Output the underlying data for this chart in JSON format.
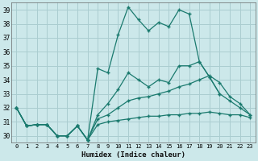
{
  "xlabel": "Humidex (Indice chaleur)",
  "bg_color": "#cce8ea",
  "line_color": "#1a7a6e",
  "grid_color": "#aacdd0",
  "xlim": [
    -0.5,
    23.5
  ],
  "ylim": [
    29.5,
    39.5
  ],
  "xticks": [
    0,
    1,
    2,
    3,
    4,
    5,
    6,
    7,
    8,
    9,
    10,
    11,
    12,
    13,
    14,
    15,
    16,
    17,
    18,
    19,
    20,
    21,
    22,
    23
  ],
  "yticks": [
    30,
    31,
    32,
    33,
    34,
    35,
    36,
    37,
    38,
    39
  ],
  "series": [
    [
      32.0,
      30.7,
      30.8,
      30.8,
      30.0,
      30.0,
      30.7,
      29.7,
      34.8,
      34.5,
      37.2,
      39.2,
      38.3,
      37.5,
      38.1,
      37.8,
      39.0,
      38.7,
      35.3,
      34.2,
      33.0,
      null,
      null,
      null
    ],
    [
      32.0,
      30.7,
      30.8,
      30.8,
      30.0,
      30.0,
      30.7,
      29.7,
      31.5,
      32.3,
      33.3,
      34.5,
      34.0,
      33.5,
      34.0,
      33.8,
      35.0,
      35.0,
      35.3,
      34.2,
      33.0,
      32.5,
      32.0,
      31.5
    ],
    [
      32.0,
      30.7,
      30.8,
      30.8,
      30.0,
      30.0,
      30.7,
      29.7,
      31.2,
      31.5,
      32.0,
      32.5,
      32.7,
      32.8,
      33.0,
      33.2,
      33.5,
      33.7,
      34.0,
      34.3,
      33.8,
      32.8,
      32.3,
      31.5
    ],
    [
      32.0,
      30.7,
      30.8,
      30.8,
      30.0,
      30.0,
      30.7,
      29.7,
      30.8,
      31.0,
      31.1,
      31.2,
      31.3,
      31.4,
      31.4,
      31.5,
      31.5,
      31.6,
      31.6,
      31.7,
      31.6,
      31.5,
      31.5,
      31.3
    ]
  ]
}
